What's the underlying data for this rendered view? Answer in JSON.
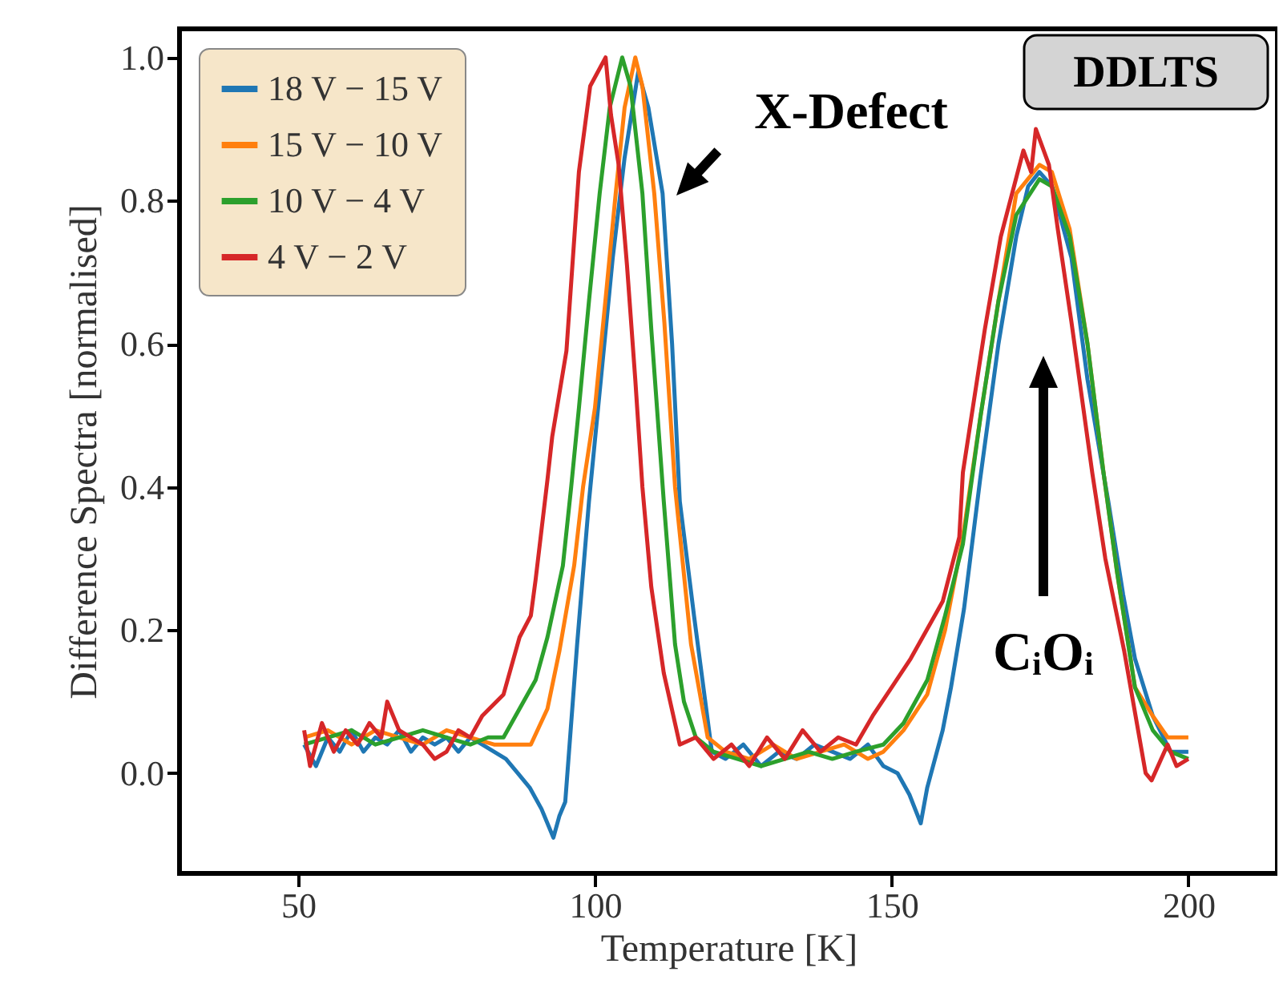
{
  "chart_data": {
    "type": "line",
    "xlabel": "Temperature [K]",
    "ylabel": "Difference Spectra [normalised]",
    "xlim": [
      30,
      215
    ],
    "xticks": [
      50,
      100,
      150,
      200
    ],
    "ylim": [
      -0.14,
      1.04
    ],
    "yticks": [
      {
        "value": 0,
        "label": "0.0"
      },
      {
        "value": 0.2,
        "label": "0.2"
      },
      {
        "value": 0.4,
        "label": "0.4"
      },
      {
        "value": 0.6,
        "label": "0.6"
      },
      {
        "value": 0.8,
        "label": "0.8"
      },
      {
        "value": 1,
        "label": "1.0"
      }
    ],
    "legend": "top left",
    "annotations": [
      "X-Defect",
      "CᵢOᵢ",
      "DDLTS"
    ],
    "series": [
      {
        "name": "18 V − 15 V",
        "color": "#1f77b4",
        "x": [
          51,
          53,
          55,
          57,
          59,
          61,
          63,
          65,
          67,
          69,
          71,
          73,
          75,
          77,
          79,
          81,
          83,
          85,
          87,
          89,
          91,
          93,
          94,
          95,
          97,
          99,
          101,
          103,
          105,
          107.3,
          109,
          111.4,
          113,
          114.3,
          116.7,
          119.7,
          122,
          125,
          128,
          131,
          134,
          137,
          140,
          143,
          146,
          148.6,
          151,
          153,
          154.9,
          156,
          158.6,
          160,
          162.2,
          164.9,
          168,
          171,
          173,
          174.9,
          177,
          180.3,
          183,
          186.5,
          189,
          191,
          194,
          197,
          200
        ],
        "values": [
          0.04,
          0.01,
          0.05,
          0.03,
          0.06,
          0.03,
          0.05,
          0.04,
          0.06,
          0.03,
          0.05,
          0.04,
          0.05,
          0.03,
          0.05,
          0.04,
          0.03,
          0.02,
          0.0,
          -0.02,
          -0.05,
          -0.09,
          -0.06,
          -0.04,
          0.18,
          0.38,
          0.55,
          0.72,
          0.86,
          0.98,
          0.93,
          0.81,
          0.6,
          0.38,
          0.22,
          0.03,
          0.02,
          0.04,
          0.01,
          0.03,
          0.02,
          0.04,
          0.03,
          0.02,
          0.04,
          0.01,
          0.0,
          -0.03,
          -0.07,
          -0.02,
          0.06,
          0.12,
          0.23,
          0.41,
          0.6,
          0.75,
          0.82,
          0.84,
          0.82,
          0.72,
          0.55,
          0.38,
          0.25,
          0.16,
          0.08,
          0.03,
          0.03
        ]
      },
      {
        "name": "15 V − 10 V",
        "color": "#ff7f0e",
        "x": [
          51,
          55,
          59,
          63,
          67,
          71,
          75,
          79,
          83,
          86,
          89.2,
          92,
          94,
          96.5,
          98,
          100,
          102,
          103.5,
          105,
          106.8,
          108,
          110,
          111.7,
          113.5,
          116.2,
          119,
          122,
          126,
          130,
          134,
          138,
          142,
          146,
          148.6,
          152,
          156,
          159,
          162,
          165,
          168,
          171,
          174.9,
          177,
          180,
          183,
          185.7,
          188,
          191,
          194,
          196.5,
          200
        ],
        "values": [
          0.05,
          0.06,
          0.04,
          0.06,
          0.05,
          0.04,
          0.06,
          0.05,
          0.04,
          0.04,
          0.04,
          0.09,
          0.17,
          0.29,
          0.4,
          0.51,
          0.68,
          0.81,
          0.93,
          1.0,
          0.96,
          0.81,
          0.63,
          0.4,
          0.18,
          0.05,
          0.03,
          0.02,
          0.04,
          0.02,
          0.03,
          0.04,
          0.02,
          0.03,
          0.06,
          0.11,
          0.2,
          0.33,
          0.5,
          0.66,
          0.81,
          0.85,
          0.84,
          0.76,
          0.6,
          0.42,
          0.28,
          0.12,
          0.08,
          0.05,
          0.05
        ]
      },
      {
        "name": "10 V − 4 V",
        "color": "#2ca02c",
        "x": [
          51,
          55,
          59,
          63,
          67,
          71,
          75,
          79,
          82,
          84.6,
          87.3,
          90,
          92,
          94.6,
          96,
          97.3,
          99,
          100.8,
          102.5,
          104.6,
          106,
          108,
          109.5,
          111.6,
          113.5,
          115,
          117,
          120,
          124,
          128,
          132,
          136,
          140,
          144,
          148.6,
          152,
          156,
          159,
          162,
          165,
          168,
          171,
          174.9,
          177,
          180,
          183,
          185.7,
          188,
          191,
          194,
          197,
          200
        ],
        "values": [
          0.04,
          0.05,
          0.06,
          0.04,
          0.05,
          0.06,
          0.05,
          0.04,
          0.05,
          0.05,
          0.09,
          0.13,
          0.19,
          0.29,
          0.4,
          0.51,
          0.66,
          0.81,
          0.93,
          1.0,
          0.96,
          0.81,
          0.62,
          0.38,
          0.18,
          0.1,
          0.05,
          0.03,
          0.02,
          0.01,
          0.02,
          0.03,
          0.02,
          0.03,
          0.04,
          0.07,
          0.13,
          0.22,
          0.32,
          0.5,
          0.66,
          0.78,
          0.83,
          0.82,
          0.75,
          0.6,
          0.42,
          0.28,
          0.12,
          0.06,
          0.03,
          0.02
        ]
      },
      {
        "name": "4 V − 2 V",
        "color": "#d62728",
        "x": [
          51,
          52,
          54,
          56,
          58,
          60,
          62,
          64,
          65,
          67,
          69,
          71,
          73,
          75,
          77,
          79,
          81,
          84.6,
          87.3,
          89.2,
          90,
          92,
          92.8,
          95.2,
          97.3,
          99.2,
          101.8,
          102.7,
          104,
          105.4,
          106.8,
          108,
          109.5,
          111.6,
          114.3,
          117,
          120,
          123,
          126,
          129,
          132,
          135,
          138,
          141,
          144,
          146.8,
          150,
          153.2,
          158.6,
          161.4,
          162,
          165.7,
          168.4,
          172.2,
          173.5,
          174.3,
          176.5,
          178,
          180.3,
          183.8,
          186,
          189.2,
          192.8,
          193.8,
          196.5,
          198,
          200
        ],
        "values": [
          0.06,
          0.01,
          0.07,
          0.03,
          0.06,
          0.04,
          0.07,
          0.05,
          0.1,
          0.06,
          0.05,
          0.04,
          0.02,
          0.03,
          0.06,
          0.05,
          0.08,
          0.11,
          0.19,
          0.22,
          0.27,
          0.41,
          0.47,
          0.59,
          0.84,
          0.96,
          1.0,
          0.92,
          0.85,
          0.71,
          0.55,
          0.4,
          0.26,
          0.14,
          0.04,
          0.05,
          0.02,
          0.04,
          0.01,
          0.05,
          0.02,
          0.06,
          0.03,
          0.05,
          0.04,
          0.08,
          0.12,
          0.16,
          0.24,
          0.33,
          0.42,
          0.62,
          0.75,
          0.87,
          0.84,
          0.9,
          0.85,
          0.76,
          0.63,
          0.42,
          0.3,
          0.17,
          0.0,
          -0.01,
          0.04,
          0.01,
          0.02
        ]
      }
    ]
  }
}
